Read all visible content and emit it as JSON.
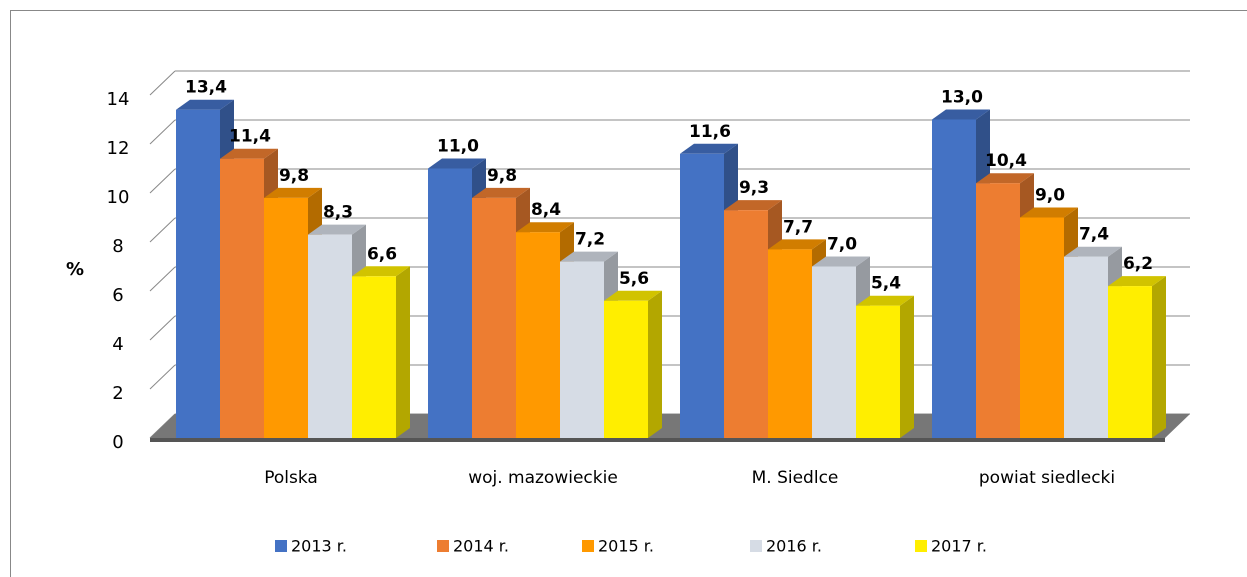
{
  "chart_data": {
    "type": "bar3d",
    "ylabel": "%",
    "categories": [
      "Polska",
      "woj. mazowieckie",
      "M. Siedlce",
      "powiat siedlecki"
    ],
    "series": [
      {
        "name": "2013 r.",
        "color": "#4472c4",
        "values": [
          13.4,
          11.0,
          11.6,
          13.0
        ],
        "value_labels": [
          "13,4",
          "11,0",
          "11,6",
          "13,0"
        ]
      },
      {
        "name": "2014 r.",
        "color": "#ed7d31",
        "values": [
          11.4,
          9.8,
          9.3,
          10.4
        ],
        "value_labels": [
          "11,4",
          "9,8",
          "9,3",
          "10,4"
        ]
      },
      {
        "name": "2015 r.",
        "color": "#ff9900",
        "values": [
          9.8,
          8.4,
          7.7,
          9.0
        ],
        "value_labels": [
          "9,8",
          "8,4",
          "7,7",
          "9,0"
        ]
      },
      {
        "name": "2016 r.",
        "color": "#d6dce5",
        "values": [
          8.3,
          7.2,
          7.0,
          7.4
        ],
        "value_labels": [
          "8,3",
          "7,2",
          "7,0",
          "7,4"
        ]
      },
      {
        "name": "2017 r.",
        "color": "#ffee00",
        "values": [
          6.6,
          5.6,
          5.4,
          6.2
        ],
        "value_labels": [
          "6,6",
          "5,6",
          "5,4",
          "6,2"
        ]
      }
    ],
    "ylim": [
      0,
      14
    ],
    "yticks": [
      0,
      2,
      4,
      6,
      8,
      10,
      12,
      14
    ],
    "grid": true,
    "legend": "bottom"
  }
}
